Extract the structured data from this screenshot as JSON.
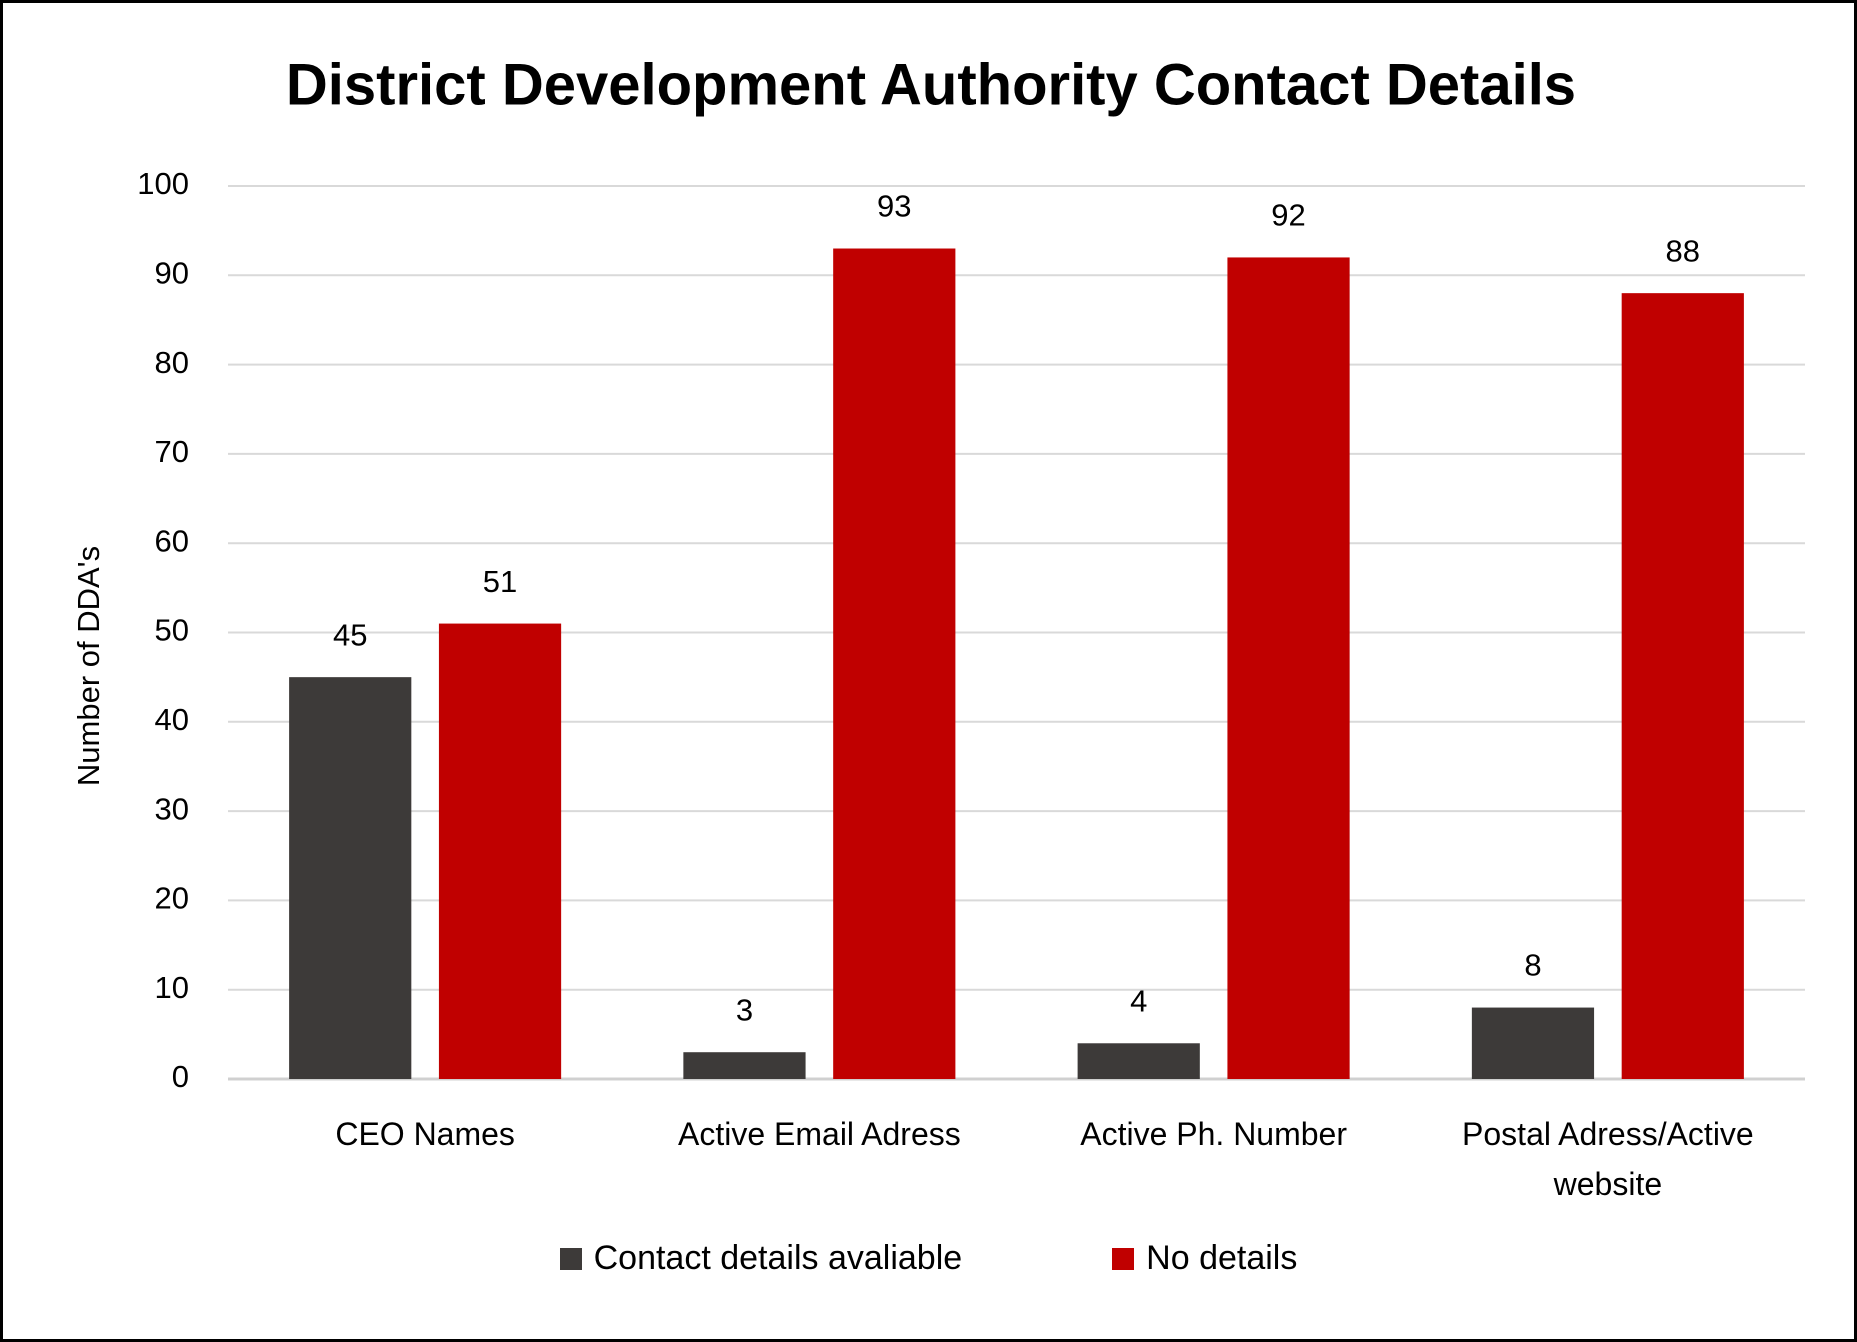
{
  "chart_data": {
    "type": "bar",
    "title": "District Development Authority Contact Details",
    "y_label": "Number of DDA's",
    "categories": [
      "CEO Names",
      "Active Email Adress",
      "Active Ph. Number",
      "Postal Adress/Active website"
    ],
    "series": [
      {
        "name": "Contact details avaliable",
        "color": "#3d3a39",
        "values": [
          45,
          3,
          4,
          8
        ]
      },
      {
        "name": "No details",
        "color": "#c00000",
        "values": [
          51,
          93,
          92,
          88
        ]
      }
    ],
    "ylim": [
      0,
      100
    ],
    "yticks": [
      0,
      10,
      20,
      30,
      40,
      50,
      60,
      70,
      80,
      90,
      100
    ],
    "grid": true,
    "legend": "bottom"
  }
}
